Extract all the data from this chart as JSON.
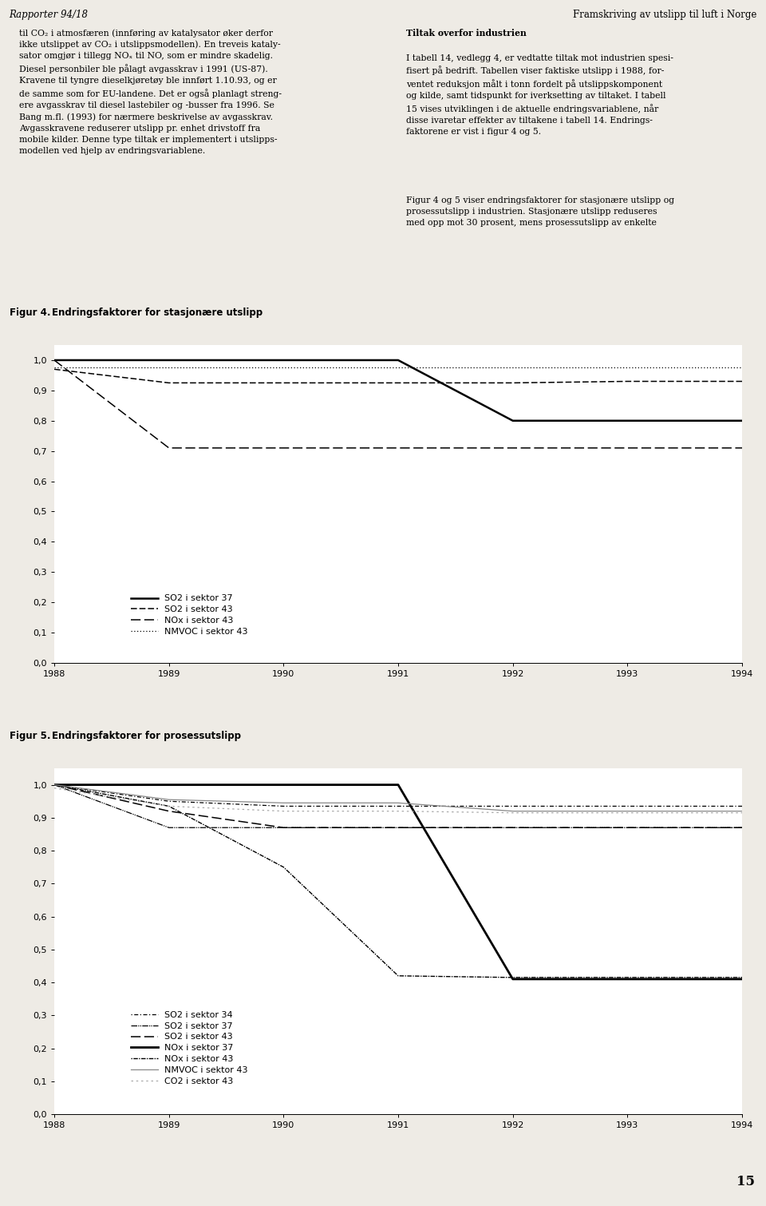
{
  "header_left": "Rapporter 94/18",
  "header_right": "Framskriving av utslipp til luft i Norge",
  "page_number": "15",
  "years": [
    1988,
    1989,
    1990,
    1991,
    1992,
    1993,
    1994
  ],
  "fig4": {
    "SO2_37": [
      1.0,
      1.0,
      1.0,
      1.0,
      0.8,
      0.8,
      0.8
    ],
    "SO2_43": [
      0.97,
      0.925,
      0.925,
      0.925,
      0.925,
      0.93,
      0.93
    ],
    "NOx_43": [
      1.0,
      0.71,
      0.71,
      0.71,
      0.71,
      0.71,
      0.71
    ],
    "NMVOC_43": [
      0.975,
      0.975,
      0.975,
      0.975,
      0.975,
      0.975,
      0.975
    ]
  },
  "fig5": {
    "SO2_34": [
      1.0,
      0.95,
      0.935,
      0.935,
      0.935,
      0.935,
      0.935
    ],
    "SO2_37": [
      1.0,
      0.87,
      0.87,
      0.87,
      0.87,
      0.87,
      0.87
    ],
    "SO2_43": [
      1.0,
      0.92,
      0.87,
      0.87,
      0.87,
      0.87,
      0.87
    ],
    "NOx_37": [
      1.0,
      1.0,
      1.0,
      1.0,
      0.41,
      0.41,
      0.41
    ],
    "NOx_43": [
      1.0,
      0.935,
      0.75,
      0.42,
      0.415,
      0.415,
      0.415
    ],
    "NMVOC_43": [
      1.0,
      0.955,
      0.945,
      0.945,
      0.92,
      0.92,
      0.92
    ],
    "CO2_43": [
      0.99,
      0.935,
      0.92,
      0.92,
      0.915,
      0.915,
      0.915
    ]
  },
  "background_color": "#eeebe5",
  "plot_bg": "#ffffff",
  "fig_header_bg": "#c8c0b0",
  "header_bar_color": "#1a1a1a",
  "separator_color": "#888888",
  "yticks": [
    0.0,
    0.1,
    0.2,
    0.3,
    0.4,
    0.5,
    0.6,
    0.7,
    0.8,
    0.9,
    1.0
  ],
  "left_col_text": "til CO₂ i atmosfæren (innføring av katalysator øker derfor\nikke utslippet av CO₂ i utslippsmodellen). En treveis kataly-\nsator omgjør i tillegg NOₓ til NO, som er mindre skadelig.\nDiesel personbiler ble pålagt avgasskrav i 1991 (US-87).\nKravene til tyngre dieselkjøretøy ble innført 1.10.93, og er\nde samme som for EU-landene. Det er også planlagt streng-\nere avgasskrav til diesel lastebiler og -busser fra 1996. Se\nBang m.fl. (1993) for nærmere beskrivelse av avgasskrav.\nAvgasskravene reduserer utslipp pr. enhet drivstoff fra\nmobile kilder. Denne type tiltak er implementert i utslipps-\nmodellen ved hjelp av endringsvariablene.",
  "right_col_title": "Tiltak overfor industrien",
  "right_col_body": "I tabell 14, vedlegg 4, er vedtatte tiltak mot industrien spesi-\nfisert på bedrift. Tabellen viser faktiske utslipp i 1988, for-\nventet reduksjon målt i tonn fordelt på utslippskomponent\nog kilde, samt tidspunkt for iverksetting av tiltaket. I tabell\n15 vises utviklingen i de aktuelle endringsvariablene, når\ndisse ivaretar effekter av tiltakene i tabell 14. Endrings-\nfaktorene er vist i figur 4 og 5.",
  "right_col_body2": "Figur 4 og 5 viser endringsfaktorer for stasjonære utslipp og\nprosessutslipp i industrien. Stasjonære utslipp reduseres\nmed opp mot 30 prosent, mens prosessutslipp av enkelte",
  "fig4_label": "Figur 4.",
  "fig4_title_text": "Endringsfaktorer for stasjonære utslipp",
  "fig5_label": "Figur 5.",
  "fig5_title_text": "Endringsfaktorer for prosessutslipp",
  "fig4_legend": [
    "SO2 i sektor 37",
    "SO2 i sektor 43",
    "NOx i sektor 43",
    "NMVOC i sektor 43"
  ],
  "fig5_legend": [
    "SO2 i sektor 34",
    "SO2 i sektor 37",
    "SO2 i sektor 43",
    "NOx i sektor 37",
    "NOx i sektor 43",
    "NMVOC i sektor 43",
    "CO2 i sektor 43"
  ]
}
